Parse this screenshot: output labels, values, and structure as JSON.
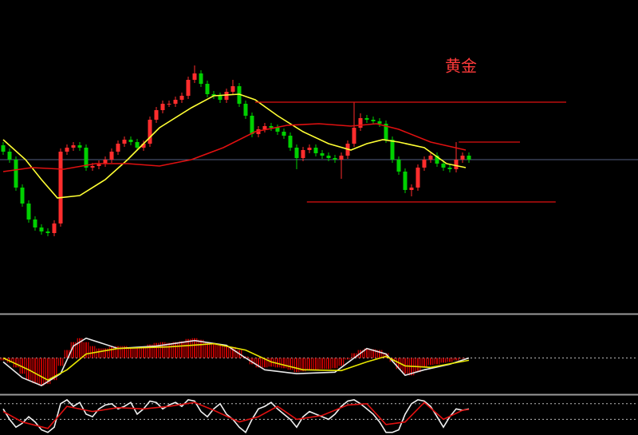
{
  "chart_data": {
    "type": "candlestick",
    "title": "黄金",
    "xlim": [
      -0.5,
      99.5
    ],
    "ylim": [
      0,
      392
    ],
    "up_color": "#ff2d2d",
    "down_color": "#00d000",
    "ohlc": [
      [
        210,
        214,
        198,
        202
      ],
      [
        202,
        206,
        188,
        192
      ],
      [
        192,
        196,
        153,
        157
      ],
      [
        157,
        161,
        133,
        137
      ],
      [
        137,
        141,
        113,
        117
      ],
      [
        117,
        121,
        103,
        107
      ],
      [
        107,
        111,
        98,
        102
      ],
      [
        102,
        106,
        96,
        100
      ],
      [
        100,
        116,
        96,
        112
      ],
      [
        112,
        206,
        108,
        202
      ],
      [
        202,
        211,
        198,
        207
      ],
      [
        207,
        214,
        203,
        210
      ],
      [
        210,
        214,
        203,
        207
      ],
      [
        207,
        211,
        178,
        182
      ],
      [
        182,
        188,
        178,
        184
      ],
      [
        184,
        191,
        180,
        187
      ],
      [
        187,
        196,
        183,
        192
      ],
      [
        192,
        206,
        188,
        202
      ],
      [
        202,
        216,
        198,
        212
      ],
      [
        212,
        221,
        208,
        217
      ],
      [
        217,
        221,
        210,
        214
      ],
      [
        214,
        218,
        203,
        207
      ],
      [
        207,
        216,
        203,
        212
      ],
      [
        212,
        246,
        208,
        242
      ],
      [
        242,
        258,
        238,
        254
      ],
      [
        254,
        266,
        250,
        262
      ],
      [
        262,
        266,
        258,
        262
      ],
      [
        262,
        271,
        258,
        267
      ],
      [
        267,
        276,
        263,
        272
      ],
      [
        272,
        296,
        268,
        292
      ],
      [
        292,
        310,
        288,
        300
      ],
      [
        300,
        304,
        283,
        287
      ],
      [
        287,
        291,
        270,
        274
      ],
      [
        274,
        278,
        268,
        272
      ],
      [
        272,
        276,
        263,
        267
      ],
      [
        267,
        281,
        263,
        277
      ],
      [
        277,
        292,
        273,
        284
      ],
      [
        284,
        288,
        258,
        262
      ],
      [
        262,
        266,
        243,
        247
      ],
      [
        247,
        251,
        220,
        224
      ],
      [
        224,
        234,
        220,
        230
      ],
      [
        230,
        238,
        226,
        234
      ],
      [
        234,
        238,
        228,
        232
      ],
      [
        232,
        236,
        223,
        227
      ],
      [
        227,
        231,
        218,
        222
      ],
      [
        222,
        226,
        203,
        207
      ],
      [
        207,
        211,
        180,
        194
      ],
      [
        194,
        208,
        190,
        204
      ],
      [
        204,
        211,
        200,
        207
      ],
      [
        207,
        211,
        196,
        200
      ],
      [
        200,
        204,
        193,
        197
      ],
      [
        197,
        201,
        190,
        194
      ],
      [
        194,
        198,
        188,
        192
      ],
      [
        192,
        201,
        168,
        197
      ],
      [
        197,
        216,
        193,
        212
      ],
      [
        212,
        264,
        208,
        232
      ],
      [
        232,
        250,
        228,
        244
      ],
      [
        244,
        248,
        238,
        242
      ],
      [
        242,
        246,
        236,
        240
      ],
      [
        240,
        244,
        233,
        237
      ],
      [
        237,
        241,
        213,
        217
      ],
      [
        217,
        221,
        188,
        192
      ],
      [
        192,
        196,
        173,
        177
      ],
      [
        177,
        181,
        150,
        154
      ],
      [
        154,
        161,
        146,
        157
      ],
      [
        157,
        186,
        153,
        182
      ],
      [
        182,
        196,
        178,
        192
      ],
      [
        192,
        201,
        188,
        197
      ],
      [
        197,
        201,
        183,
        187
      ],
      [
        187,
        191,
        178,
        182
      ],
      [
        182,
        186,
        176,
        180
      ],
      [
        180,
        214,
        176,
        192
      ],
      [
        192,
        201,
        188,
        197
      ],
      [
        197,
        201,
        188,
        192
      ]
    ],
    "series": [
      {
        "color": "#ffff33",
        "x": [
          0,
          3.5,
          6,
          8.5,
          12,
          16,
          19.5,
          24.5,
          29.5,
          33,
          37,
          39.5,
          43,
          47,
          51,
          54.5,
          57,
          59.5,
          62,
          66,
          69.5,
          72.5
        ],
        "values": [
          217,
          192,
          167,
          144,
          147,
          167,
          192,
          232,
          257,
          272,
          274,
          267,
          247,
          227,
          212,
          204,
          212,
          217,
          214,
          207,
          187,
          182
        ]
      },
      {
        "color": "#e01010",
        "x": [
          0,
          4.5,
          9.5,
          14.5,
          19.5,
          24.5,
          29.5,
          34.5,
          39.5,
          44.5,
          49.5,
          54.5,
          58.5,
          62,
          67,
          72.5
        ],
        "values": [
          177,
          182,
          180,
          187,
          187,
          184,
          192,
          207,
          227,
          235,
          237,
          234,
          237,
          230,
          214,
          204
        ]
      }
    ],
    "levels": [
      {
        "value": 264,
        "from": 39.5,
        "to": 88.25
      },
      {
        "value": 214,
        "from": 71.4,
        "to": 81
      },
      {
        "value": 139,
        "from": 47.6,
        "to": 86.6
      }
    ],
    "level_color": "#e01010",
    "current": 192,
    "current_color": "#55607f",
    "macd": {
      "ylim": [
        -44,
        53
      ],
      "bar_color": "#c00000",
      "histogram": [
        -3,
        -6,
        -12,
        -20,
        -28,
        -32,
        -35,
        -33,
        -28,
        -10,
        10,
        20,
        25,
        20,
        15,
        12,
        12,
        14,
        15,
        15,
        13,
        12,
        13,
        17,
        19,
        20,
        19,
        20,
        21,
        24,
        25,
        23,
        20,
        18,
        16,
        15,
        14,
        10,
        2,
        -8,
        -12,
        -12,
        -11,
        -12,
        -13,
        -15,
        -18,
        -17,
        -15,
        -15,
        -14,
        -14,
        -13,
        -10,
        -2,
        6,
        10,
        12,
        11,
        10,
        6,
        -5,
        -14,
        -20,
        -22,
        -18,
        -12,
        -9,
        -8,
        -6,
        -5,
        -3,
        -1,
        0
      ],
      "series": [
        {
          "color": "#e8e8e8",
          "x": [
            0,
            3,
            6,
            9,
            11,
            13,
            18,
            24,
            30,
            35,
            38,
            41,
            46,
            52,
            55,
            57,
            60,
            63,
            66,
            70,
            73
          ],
          "values": [
            -5,
            -25,
            -35,
            -20,
            15,
            25,
            12,
            15,
            22,
            16,
            0,
            -15,
            -20,
            -18,
            0,
            12,
            5,
            -22,
            -15,
            -8,
            0
          ]
        },
        {
          "color": "#e6e600",
          "x": [
            0,
            4,
            7,
            10,
            13,
            18,
            26,
            33,
            38,
            42,
            47,
            53,
            57,
            60,
            63,
            67,
            73
          ],
          "values": [
            0,
            -15,
            -28,
            -15,
            5,
            12,
            14,
            18,
            10,
            -5,
            -15,
            -16,
            -5,
            2,
            -10,
            -12,
            -3
          ]
        }
      ]
    },
    "stoch": {
      "ylim": [
        -40,
        110
      ],
      "levels": [
        80,
        20
      ],
      "series": [
        {
          "color": "#f0f0f0",
          "x": [
            0,
            1,
            2,
            3,
            4,
            5,
            6,
            7,
            8,
            9,
            10,
            11,
            12,
            13,
            14,
            15,
            16,
            17,
            18,
            19,
            20,
            21,
            22,
            23,
            24,
            25,
            26,
            27,
            28,
            29,
            30,
            31,
            32,
            33,
            34,
            35,
            36,
            37,
            38,
            39,
            40,
            41,
            42,
            43,
            44,
            45,
            46,
            47,
            48,
            49,
            50,
            51,
            52,
            53,
            54,
            55,
            56,
            57,
            58,
            59,
            60,
            61,
            62,
            63,
            64,
            65,
            66,
            67,
            68,
            69,
            70,
            71,
            72,
            73
          ],
          "values": [
            60,
            20,
            -10,
            5,
            30,
            10,
            -20,
            -30,
            -10,
            80,
            95,
            70,
            85,
            40,
            30,
            60,
            75,
            80,
            60,
            70,
            85,
            40,
            60,
            90,
            85,
            60,
            75,
            85,
            70,
            95,
            90,
            50,
            30,
            60,
            80,
            40,
            20,
            -10,
            -30,
            20,
            60,
            70,
            85,
            60,
            40,
            20,
            -10,
            30,
            50,
            40,
            30,
            20,
            40,
            70,
            90,
            95,
            80,
            60,
            40,
            10,
            -30,
            -30,
            -20,
            40,
            80,
            95,
            90,
            70,
            30,
            -10,
            30,
            60,
            55,
            60
          ]
        },
        {
          "color": "#e01010",
          "x": [
            0,
            3,
            7,
            10,
            14,
            18,
            22,
            26,
            30,
            33,
            37,
            40,
            43,
            46,
            50,
            54,
            57,
            60,
            63,
            66,
            69,
            72,
            73
          ],
          "values": [
            50,
            10,
            -15,
            70,
            50,
            65,
            60,
            70,
            85,
            55,
            10,
            30,
            70,
            20,
            35,
            75,
            80,
            0,
            10,
            85,
            20,
            55,
            58
          ]
        }
      ]
    }
  }
}
